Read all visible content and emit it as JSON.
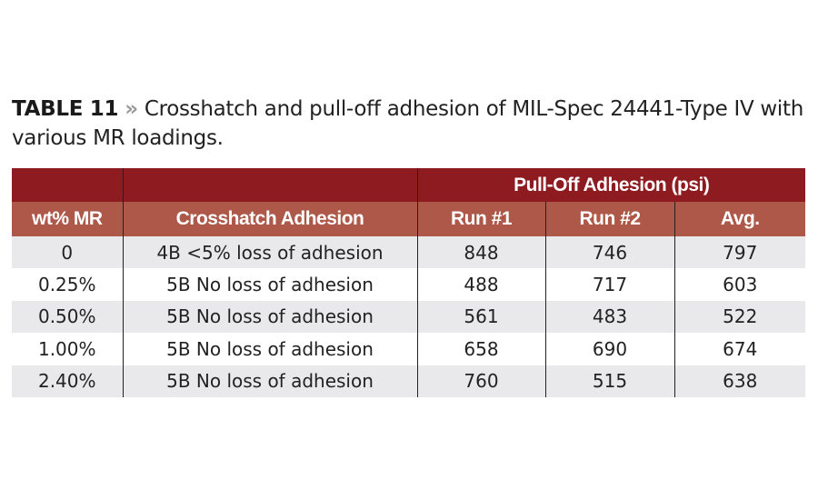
{
  "caption": {
    "label": "TABLE 11",
    "separator": "»",
    "text": "Crosshatch and pull-off adhesion of MIL-Spec 24441-Type IV with various MR loadings."
  },
  "colors": {
    "header_dark": "#8e1b20",
    "header_light": "#ad5848",
    "row_shade": "#e9e9eb"
  },
  "table": {
    "group_header": "Pull-Off Adhesion (psi)",
    "columns": [
      "wt% MR",
      "Crosshatch Adhesion",
      "Run #1",
      "Run #2",
      "Avg."
    ],
    "rows": [
      [
        "0",
        "4B <5% loss of adhesion",
        "848",
        "746",
        "797"
      ],
      [
        "0.25%",
        "5B No loss of adhesion",
        "488",
        "717",
        "603"
      ],
      [
        "0.50%",
        "5B No loss of adhesion",
        "561",
        "483",
        "522"
      ],
      [
        "1.00%",
        "5B No loss of adhesion",
        "658",
        "690",
        "674"
      ],
      [
        "2.40%",
        "5B No loss of adhesion",
        "760",
        "515",
        "638"
      ]
    ]
  }
}
